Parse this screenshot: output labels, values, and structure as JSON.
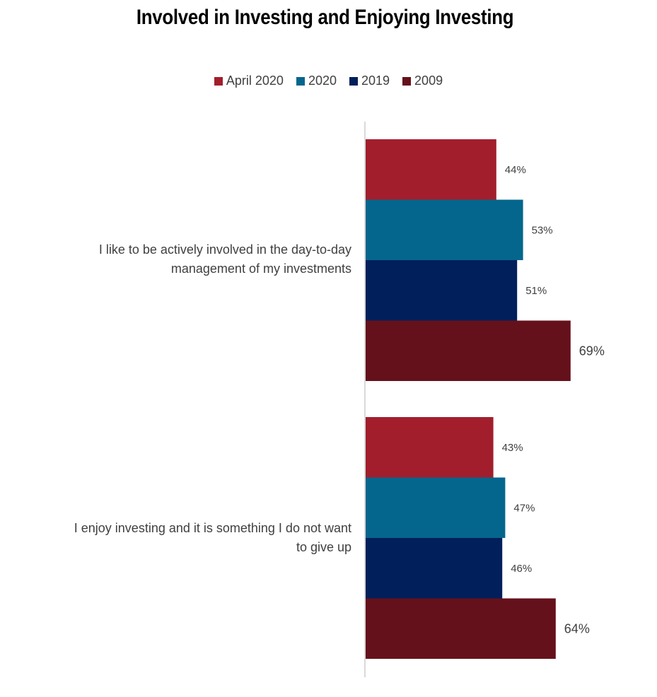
{
  "chart_data": {
    "type": "bar",
    "orientation": "horizontal",
    "title": "Involved in Investing and Enjoying Investing",
    "categories": [
      "I like to be actively involved in the day-to-day management of my investments",
      "I enjoy investing and it is something I do not want to give up"
    ],
    "category_lines": [
      [
        "I like to be actively involved in the day-to-day",
        "management of my investments"
      ],
      [
        "I enjoy investing and it is something I do not want",
        "to give up"
      ]
    ],
    "series": [
      {
        "name": "April 2020",
        "color": "#A21E2C",
        "values": [
          44,
          43
        ],
        "labels": [
          "44%",
          "43%"
        ]
      },
      {
        "name": "2020",
        "color": "#05668D",
        "values": [
          53,
          47
        ],
        "labels": [
          "53%",
          "47%"
        ]
      },
      {
        "name": "2019",
        "color": "#001F5B",
        "values": [
          51,
          46
        ],
        "labels": [
          "51%",
          "46%"
        ]
      },
      {
        "name": "2009",
        "color": "#65111B",
        "values": [
          69,
          64
        ],
        "labels": [
          "69%",
          "64%"
        ]
      }
    ],
    "xlim": [
      0,
      100
    ],
    "grid": false,
    "legend_position": "top-center"
  }
}
